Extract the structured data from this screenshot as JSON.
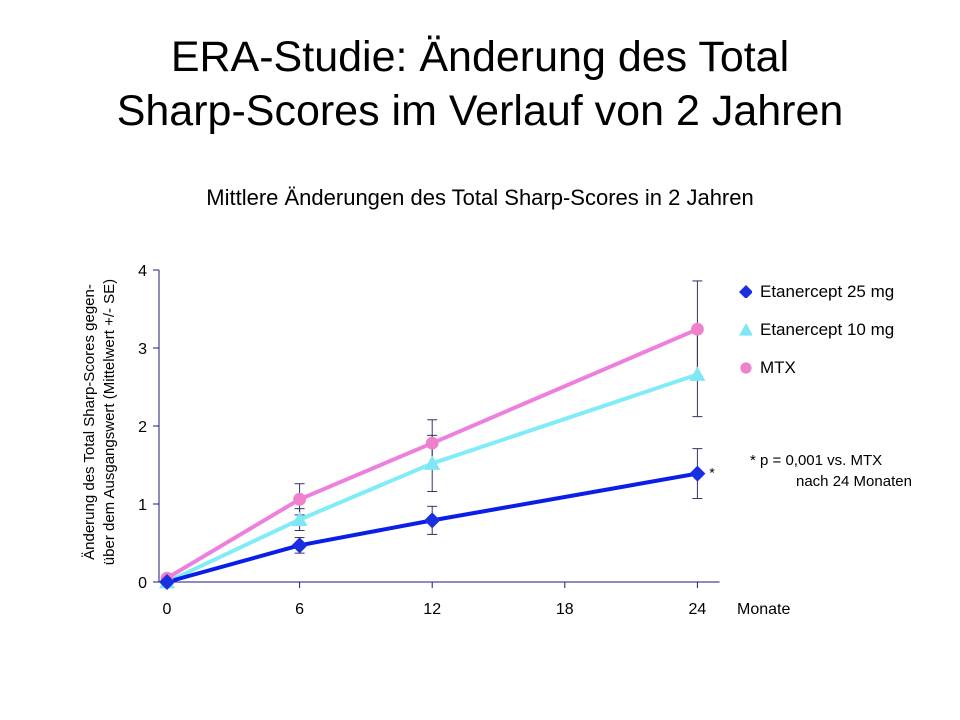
{
  "slide": {
    "title_line1": "ERA-Studie: Änderung des Total",
    "title_line2": "Sharp-Scores im Verlauf von 2 Jahren"
  },
  "chart_data": {
    "type": "line",
    "title": "Mittlere Änderungen des Total Sharp-Scores in 2 Jahren",
    "ylabel_line1": "Änderung des Total Sharp-Scores gegen-",
    "ylabel_line2": "über dem Ausgangswert (Mittelwert +/- SE)",
    "xlabel": "Monate",
    "x_ticks": [
      0,
      6,
      12,
      18,
      24
    ],
    "y_ticks": [
      0,
      1,
      2,
      3,
      4
    ],
    "xlim": [
      0,
      25
    ],
    "ylim": [
      0,
      4
    ],
    "grid": false,
    "legend_position": "right",
    "series": [
      {
        "name": "Etanercept 25 mg",
        "marker": "diamond",
        "marker_color": "#1a2fe0",
        "line_color": "#0a1ee8",
        "x": [
          0,
          6,
          12,
          24
        ],
        "y": [
          0,
          0.47,
          0.79,
          1.39
        ],
        "err": [
          0,
          0.1,
          0.18,
          0.32
        ]
      },
      {
        "name": "Etanercept 10 mg",
        "marker": "triangle",
        "marker_color": "#7fe6f5",
        "line_color": "#80ecf8",
        "x": [
          0,
          6,
          12,
          24
        ],
        "y": [
          0,
          0.8,
          1.52,
          2.66
        ],
        "err": [
          0,
          0.14,
          0.36,
          0.54
        ]
      },
      {
        "name": "MTX",
        "marker": "circle",
        "marker_color": "#ee80cc",
        "line_color": "#ee80dd",
        "x": [
          0,
          6,
          12,
          24
        ],
        "y": [
          0.05,
          1.06,
          1.78,
          3.24
        ],
        "err": [
          0,
          0.2,
          0.3,
          0.62
        ]
      }
    ],
    "annotations": [
      {
        "text": "*",
        "series": "Etanercept 25 mg",
        "x": 24,
        "y": 1.39
      }
    ],
    "footnote_line1": "* p = 0,001 vs. MTX",
    "footnote_line2": "nach 24 Monaten"
  }
}
